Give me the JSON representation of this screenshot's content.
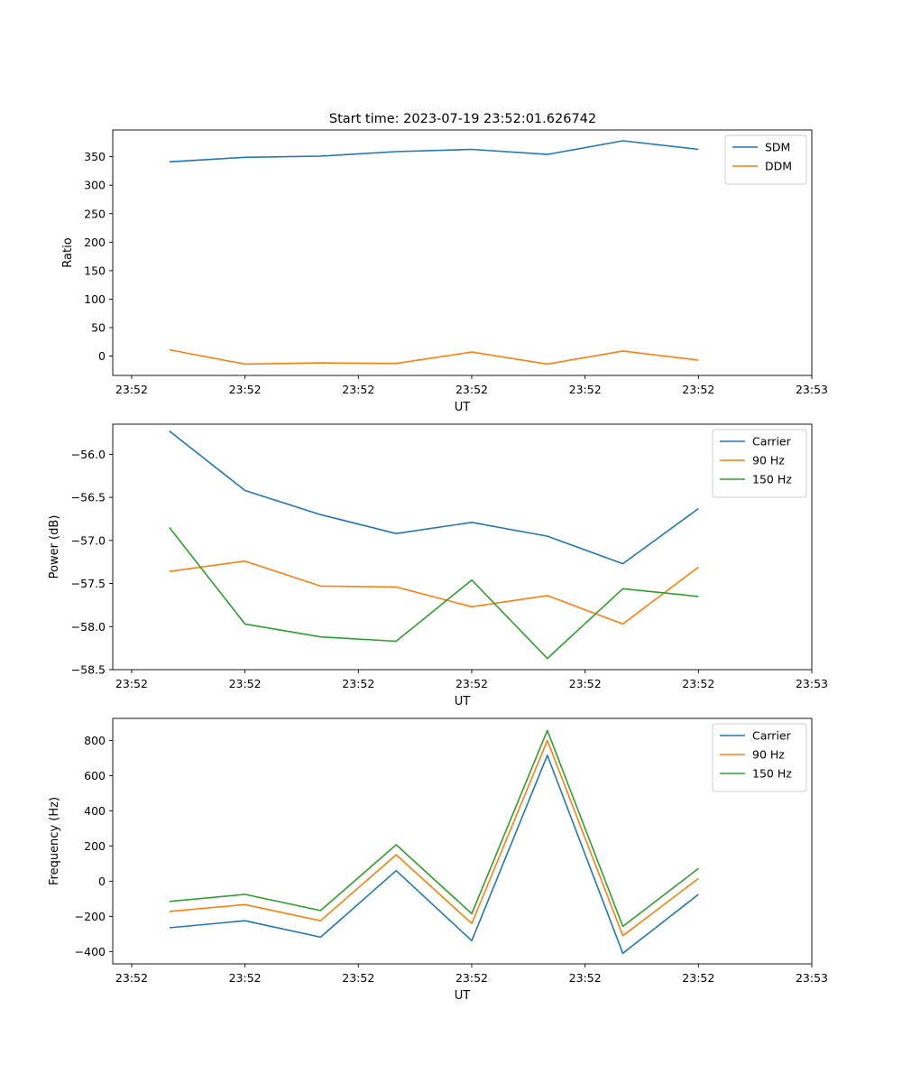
{
  "title": "Start time: 2023-07-19 23:52:01.626742",
  "chart_data": [
    {
      "type": "line",
      "xlabel": "UT",
      "ylabel": "Ratio",
      "x": [
        1,
        2,
        3,
        4,
        5,
        6,
        7,
        8
      ],
      "xlim": [
        0.25,
        9.5
      ],
      "xticks": [
        0.5,
        2,
        3.5,
        5,
        6.5,
        8,
        9.5
      ],
      "xtick_labels": [
        "23:52",
        "23:52",
        "23:52",
        "23:52",
        "23:52",
        "23:52",
        "23:53"
      ],
      "ylim": [
        -34,
        397
      ],
      "yticks": [
        0,
        50,
        100,
        150,
        200,
        250,
        300,
        350
      ],
      "ytick_labels": [
        "0",
        "50",
        "100",
        "150",
        "200",
        "250",
        "300",
        "350"
      ],
      "legend": "upper-right",
      "series": [
        {
          "name": "SDM",
          "color": "#1f77b4",
          "values": [
            341,
            349,
            351,
            359,
            363,
            354,
            378,
            363
          ]
        },
        {
          "name": "DDM",
          "color": "#ff7f0e",
          "values": [
            11,
            -14,
            -12,
            -13,
            7,
            -14,
            9,
            -7
          ]
        }
      ]
    },
    {
      "type": "line",
      "xlabel": "UT",
      "ylabel": "Power (dB)",
      "x": [
        1,
        2,
        3,
        4,
        5,
        6,
        7,
        8
      ],
      "xlim": [
        0.25,
        9.5
      ],
      "xticks": [
        0.5,
        2,
        3.5,
        5,
        6.5,
        8,
        9.5
      ],
      "xtick_labels": [
        "23:52",
        "23:52",
        "23:52",
        "23:52",
        "23:52",
        "23:52",
        "23:53"
      ],
      "ylim": [
        -58.5,
        -55.65
      ],
      "yticks": [
        -56.0,
        -56.5,
        -57.0,
        -57.5,
        -58.0,
        -58.5
      ],
      "ytick_labels": [
        "−56.0",
        "−56.5",
        "−57.0",
        "−57.5",
        "−58.0",
        "−58.5"
      ],
      "legend": "upper-right",
      "series": [
        {
          "name": "Carrier",
          "color": "#1f77b4",
          "values": [
            -55.73,
            -56.42,
            -56.7,
            -56.92,
            -56.79,
            -56.95,
            -57.27,
            -56.63
          ]
        },
        {
          "name": "90 Hz",
          "color": "#ff7f0e",
          "values": [
            -57.36,
            -57.24,
            -57.53,
            -57.54,
            -57.77,
            -57.64,
            -57.97,
            -57.31
          ]
        },
        {
          "name": "150 Hz",
          "color": "#2ca02c",
          "values": [
            -56.85,
            -57.97,
            -58.12,
            -58.17,
            -57.46,
            -58.37,
            -57.56,
            -57.65
          ]
        }
      ]
    },
    {
      "type": "line",
      "xlabel": "UT",
      "ylabel": "Frequency (Hz)",
      "x": [
        1,
        2,
        3,
        4,
        5,
        6,
        7,
        8
      ],
      "xlim": [
        0.25,
        9.5
      ],
      "xticks": [
        0.5,
        2,
        3.5,
        5,
        6.5,
        8,
        9.5
      ],
      "xtick_labels": [
        "23:52",
        "23:52",
        "23:52",
        "23:52",
        "23:52",
        "23:52",
        "23:53"
      ],
      "ylim": [
        -470,
        925
      ],
      "yticks": [
        -400,
        -200,
        0,
        200,
        400,
        600,
        800
      ],
      "ytick_labels": [
        "−400",
        "−200",
        "0",
        "200",
        "400",
        "600",
        "800"
      ],
      "legend": "upper-right",
      "series": [
        {
          "name": "Carrier",
          "color": "#1f77b4",
          "values": [
            -265,
            -225,
            -318,
            60,
            -338,
            715,
            -410,
            -75
          ]
        },
        {
          "name": "90 Hz",
          "color": "#ff7f0e",
          "values": [
            -172,
            -133,
            -225,
            150,
            -240,
            800,
            -310,
            15
          ]
        },
        {
          "name": "150 Hz",
          "color": "#2ca02c",
          "values": [
            -115,
            -75,
            -167,
            207,
            -185,
            857,
            -257,
            72
          ]
        }
      ]
    }
  ]
}
